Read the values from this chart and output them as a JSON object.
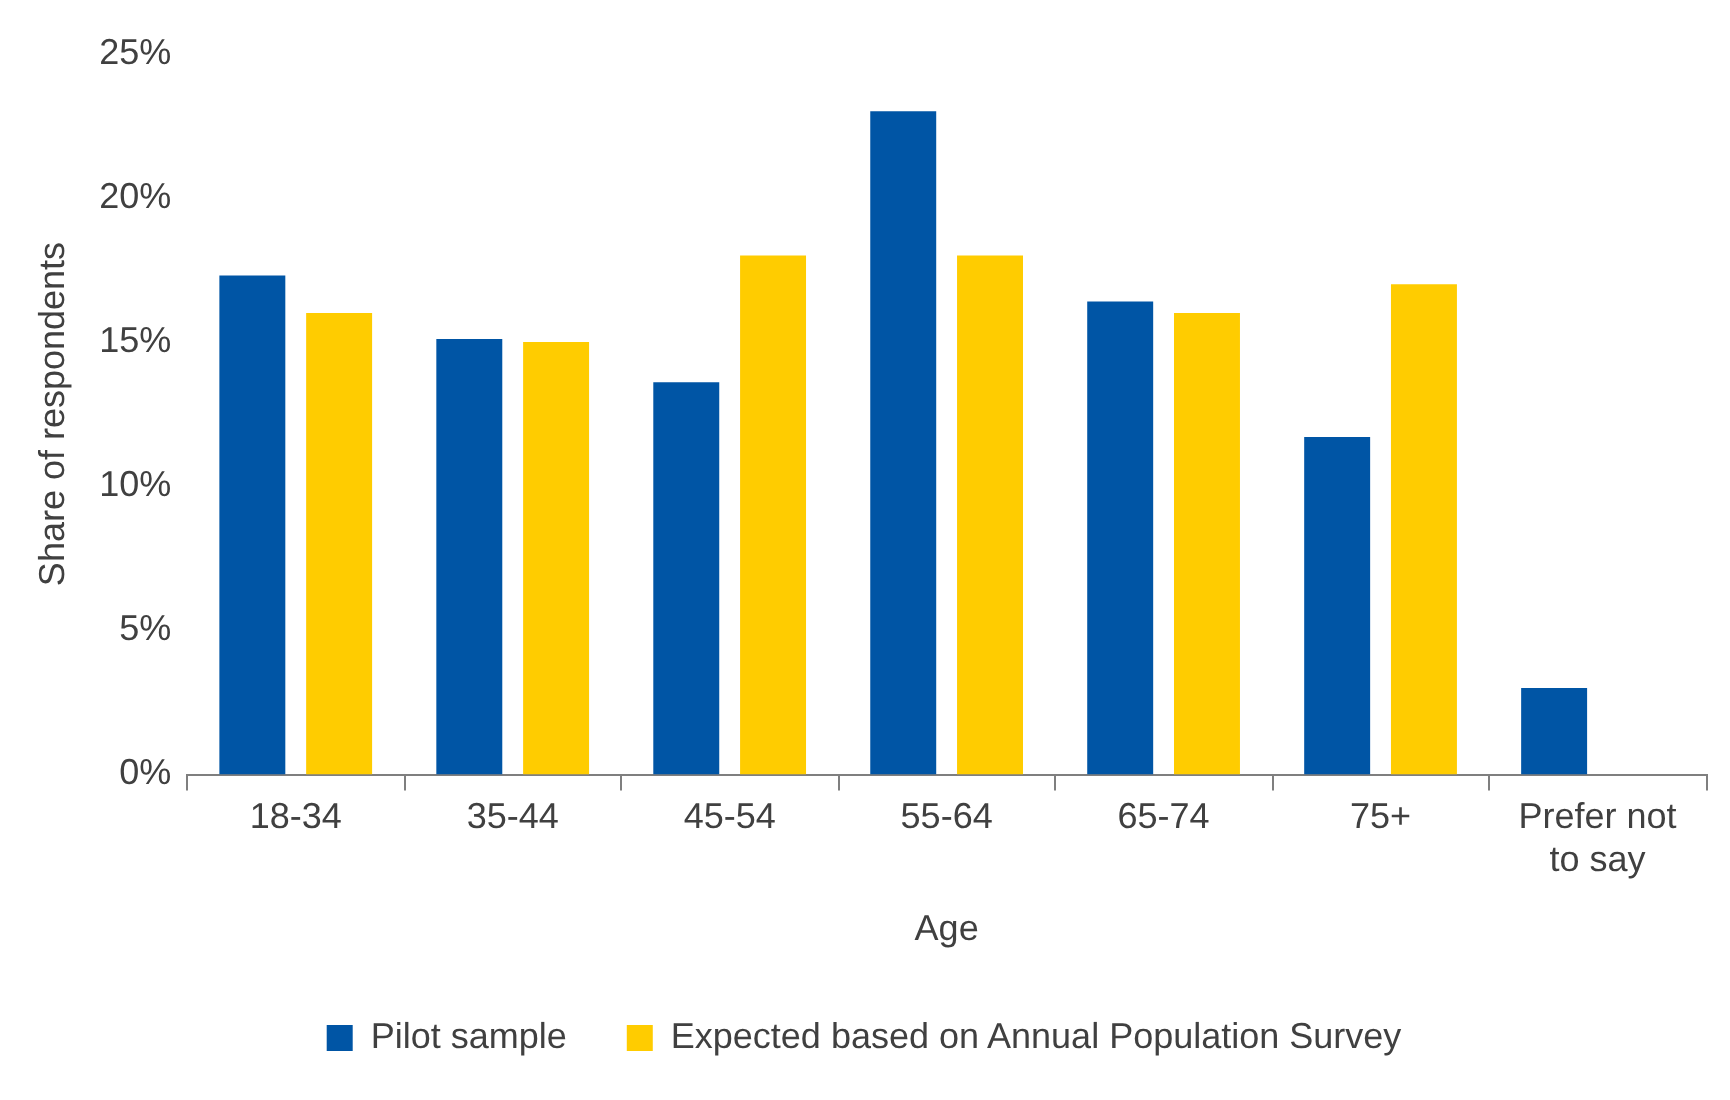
{
  "chart_data": {
    "type": "bar",
    "xlabel": "Age",
    "ylabel": "Share of respondents",
    "categories": [
      "18-34",
      "35-44",
      "45-54",
      "55-64",
      "65-74",
      "75+",
      "Prefer not to say"
    ],
    "series": [
      {
        "name": "Pilot sample",
        "color": "#0055a5",
        "values": [
          17.3,
          15.1,
          13.6,
          23.0,
          16.4,
          11.7,
          3.0
        ]
      },
      {
        "name": "Expected based on Annual Population Survey",
        "color": "#ffcc00",
        "values": [
          16,
          15,
          18,
          18,
          16,
          17,
          null
        ]
      }
    ],
    "ylim": [
      0,
      25
    ],
    "yticks": [
      {
        "value": 0,
        "label": "0%"
      },
      {
        "value": 5,
        "label": "5%"
      },
      {
        "value": 10,
        "label": "10%"
      },
      {
        "value": 15,
        "label": "15%"
      },
      {
        "value": 20,
        "label": "20%"
      },
      {
        "value": 25,
        "label": "25%"
      }
    ],
    "grid": false,
    "legend": "bottom"
  }
}
